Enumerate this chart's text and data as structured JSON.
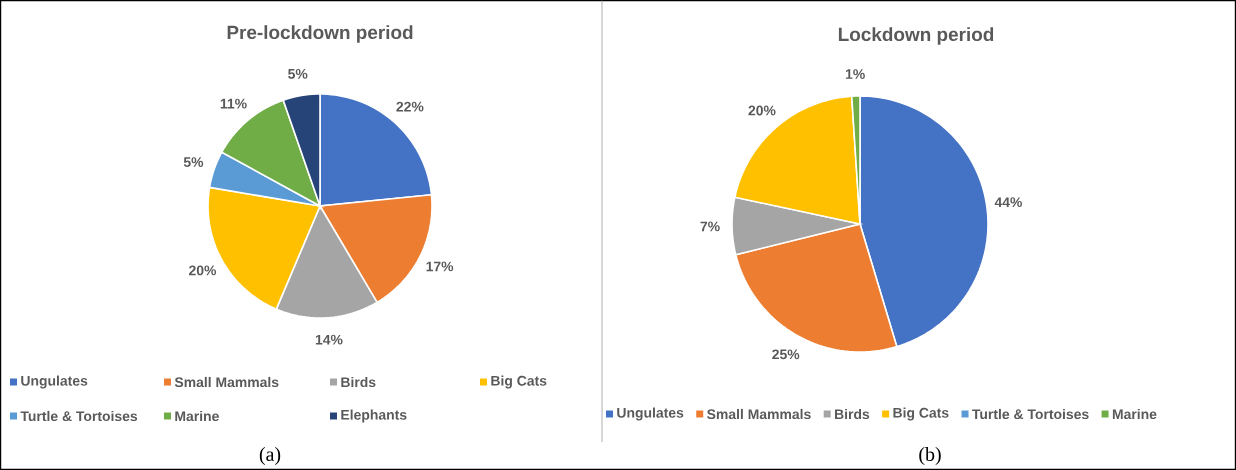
{
  "chart_data": [
    {
      "type": "pie",
      "title": "Pre-lockdown period",
      "categories": [
        "Ungulates",
        "Small Mammals",
        "Birds",
        "Big Cats",
        "Turtle & Tortoises",
        "Marine",
        "Elephants"
      ],
      "values": [
        22,
        17,
        14,
        20,
        5,
        11,
        5
      ],
      "value_labels": [
        "22%",
        "17%",
        "14%",
        "20%",
        "5%",
        "11%",
        "5%"
      ],
      "colors": [
        "#4472c4",
        "#ed7d31",
        "#a5a5a5",
        "#ffc000",
        "#5b9bd5",
        "#70ad47",
        "#264478"
      ],
      "legend": "bottom",
      "annotations": [
        "(a)"
      ]
    },
    {
      "type": "pie",
      "title": "Lockdown period",
      "categories": [
        "Ungulates",
        "Small Mammals",
        "Birds",
        "Big Cats",
        "Turtle & Tortoises",
        "Marine"
      ],
      "values": [
        44,
        25,
        7,
        20,
        null,
        1
      ],
      "value_labels": [
        "44%",
        "25%",
        "7%",
        "20%",
        null,
        "1%"
      ],
      "colors": [
        "#4472c4",
        "#ed7d31",
        "#a5a5a5",
        "#ffc000",
        "#5b9bd5",
        "#70ad47"
      ],
      "legend": "bottom",
      "annotations": [
        "(b)"
      ]
    }
  ]
}
